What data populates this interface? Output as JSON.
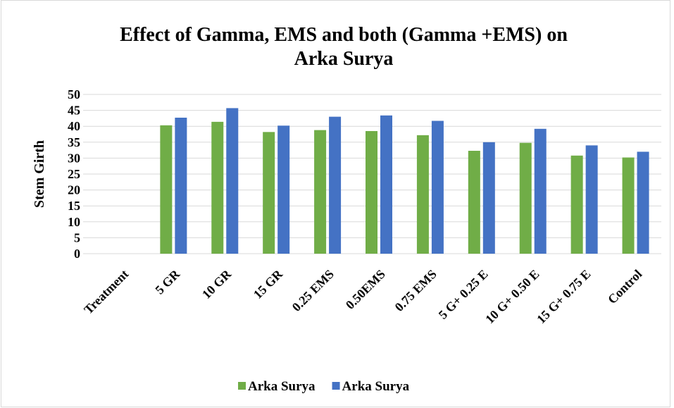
{
  "chart_data": {
    "type": "bar",
    "title": "Effect of Gamma, EMS and both (Gamma +EMS) on Arka Surya",
    "y_label": "Stem Girth",
    "categories": [
      "Treatment",
      "5 GR",
      "10 GR",
      "15 GR",
      "0.25 EMS",
      "0.50EMS",
      "0.75 EMS",
      "5 G+ 0.25 E",
      "10 G+ 0.50 E",
      "15 G+ 0.75 E",
      "Control"
    ],
    "series": [
      {
        "name": "Arka Surya",
        "color": "#70ad47",
        "values": [
          null,
          40.3,
          41.4,
          38.2,
          38.8,
          38.5,
          37.2,
          32.3,
          34.8,
          30.8,
          30.2
        ]
      },
      {
        "name": "Arka Surya",
        "color": "#4472c4",
        "values": [
          null,
          42.7,
          45.7,
          40.2,
          43.0,
          43.4,
          41.7,
          35.0,
          39.2,
          34.0,
          32.0
        ]
      }
    ],
    "ylim": [
      0,
      50
    ],
    "yticks": [
      0,
      5,
      10,
      15,
      20,
      25,
      30,
      35,
      40,
      45,
      50
    ],
    "grid": true,
    "legend": "bottom"
  }
}
